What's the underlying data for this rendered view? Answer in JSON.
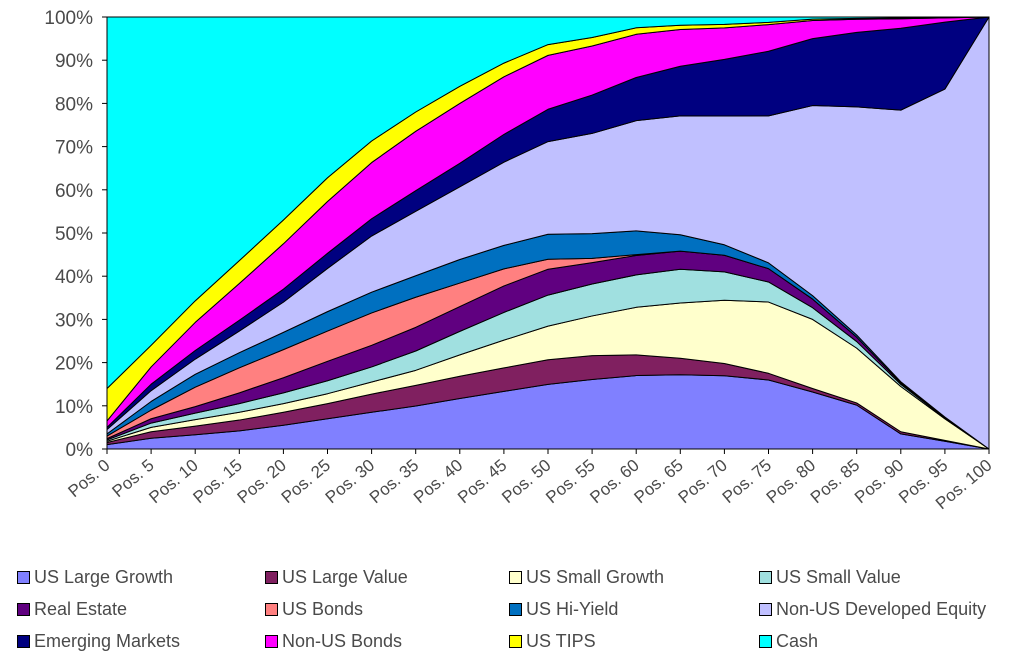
{
  "chart_data": {
    "type": "area",
    "stacked": true,
    "percent": true,
    "categories": [
      "Pos. 0",
      "Pos. 5",
      "Pos. 10",
      "Pos. 15",
      "Pos. 20",
      "Pos. 25",
      "Pos. 30",
      "Pos. 35",
      "Pos. 40",
      "Pos. 45",
      "Pos. 50",
      "Pos. 55",
      "Pos. 60",
      "Pos. 65",
      "Pos. 70",
      "Pos. 75",
      "Pos. 80",
      "Pos. 85",
      "Pos. 90",
      "Pos. 95",
      "Pos. 100"
    ],
    "yticks": [
      "0%",
      "10%",
      "20%",
      "30%",
      "40%",
      "50%",
      "60%",
      "70%",
      "80%",
      "90%",
      "100%"
    ],
    "ylim": [
      0,
      100
    ],
    "title": "",
    "xlabel": "",
    "ylabel": "",
    "legend_position": "bottom",
    "series": [
      {
        "name": "US Large Growth",
        "color": "#8080ff",
        "values": [
          1,
          2.5,
          3.3,
          4.2,
          5.5,
          7,
          8.5,
          10,
          11.8,
          13.5,
          15,
          16.3,
          17,
          17.2,
          16.8,
          15.5,
          13.2,
          10,
          3.5,
          1.8,
          0
        ]
      },
      {
        "name": "US Large Value",
        "color": "#802060",
        "values": [
          0.5,
          1.5,
          2,
          2.5,
          3,
          3.5,
          4.2,
          4.8,
          5.2,
          5.5,
          5.7,
          5.6,
          4.8,
          3.8,
          2.8,
          1.5,
          0.8,
          0.5,
          0.5,
          0.2,
          0
        ]
      },
      {
        "name": "US Small Growth",
        "color": "#ffffcc",
        "values": [
          0.3,
          1,
          1.5,
          1.8,
          2,
          2.3,
          2.8,
          3.5,
          5,
          6.5,
          7.8,
          9.3,
          11,
          12.8,
          14.5,
          16,
          16,
          12.5,
          10.5,
          5,
          0
        ]
      },
      {
        "name": "US Small Value",
        "color": "#a0e0e0",
        "values": [
          0.3,
          1,
          1.5,
          2,
          2.5,
          3,
          3.5,
          4.5,
          5.5,
          6.5,
          7.2,
          7.5,
          7.5,
          7.8,
          6.5,
          4.5,
          2.7,
          1.5,
          0.5,
          0.2,
          0
        ]
      },
      {
        "name": "Real Estate",
        "color": "#600080",
        "values": [
          0.3,
          1,
          1.5,
          2.5,
          3.5,
          4.5,
          5,
          5.5,
          5.8,
          6.2,
          6,
          5,
          4.5,
          4.2,
          3.8,
          3,
          2,
          1,
          0.3,
          0.1,
          0
        ]
      },
      {
        "name": "US Bonds",
        "color": "#ff8080",
        "values": [
          0.6,
          2,
          4.5,
          5.8,
          6.5,
          7,
          7.5,
          7,
          5.5,
          4,
          2.3,
          1,
          0.2,
          0,
          0,
          0,
          0,
          0,
          0,
          0,
          0
        ]
      },
      {
        "name": "US Hi-Yield",
        "color": "#0070c0",
        "values": [
          0.5,
          2,
          3,
          3.5,
          4,
          4.5,
          4.8,
          5,
          5.5,
          5.5,
          5.8,
          5.8,
          5.5,
          3.8,
          2.4,
          1.3,
          0.8,
          0.5,
          0.3,
          0.1,
          0
        ]
      },
      {
        "name": "Non-US Developed Equity",
        "color": "#c0c0ff",
        "values": [
          1,
          2.5,
          3.5,
          5,
          7,
          10,
          13,
          15,
          17,
          19.5,
          21.5,
          23.5,
          25.5,
          27.5,
          29.5,
          33,
          44,
          52,
          63,
          76,
          100
        ]
      },
      {
        "name": "Emerging Markets",
        "color": "#000080",
        "values": [
          0.5,
          1.5,
          2,
          2.5,
          3,
          3.5,
          4,
          4.8,
          5.5,
          6.5,
          7.5,
          9,
          10,
          11.5,
          13,
          14.5,
          15.5,
          17,
          19,
          15.5,
          0
        ]
      },
      {
        "name": "Non-US Bonds",
        "color": "#ff00ff",
        "values": [
          1.5,
          4,
          6.5,
          8.5,
          10.5,
          12,
          13,
          13.8,
          14,
          13.5,
          12.5,
          11.5,
          10,
          8.5,
          7.2,
          6,
          4.2,
          3,
          2.2,
          1,
          0
        ]
      },
      {
        "name": "US TIPS",
        "color": "#ffff00",
        "values": [
          7.5,
          5,
          5,
          5.3,
          5.5,
          5.5,
          5,
          4.5,
          4,
          3.2,
          2.5,
          2,
          1.5,
          1,
          0.8,
          0.5,
          0.3,
          0.2,
          0.2,
          0.1,
          0
        ]
      },
      {
        "name": "Cash",
        "color": "#00ffff",
        "values": [
          86,
          76,
          65.7,
          56.4,
          47,
          37.2,
          28.7,
          22.1,
          16.2,
          10.8,
          6.4,
          4.8,
          2.5,
          1.9,
          1.7,
          1.2,
          0.5,
          0.3,
          0.2,
          0.1,
          0
        ]
      }
    ]
  }
}
